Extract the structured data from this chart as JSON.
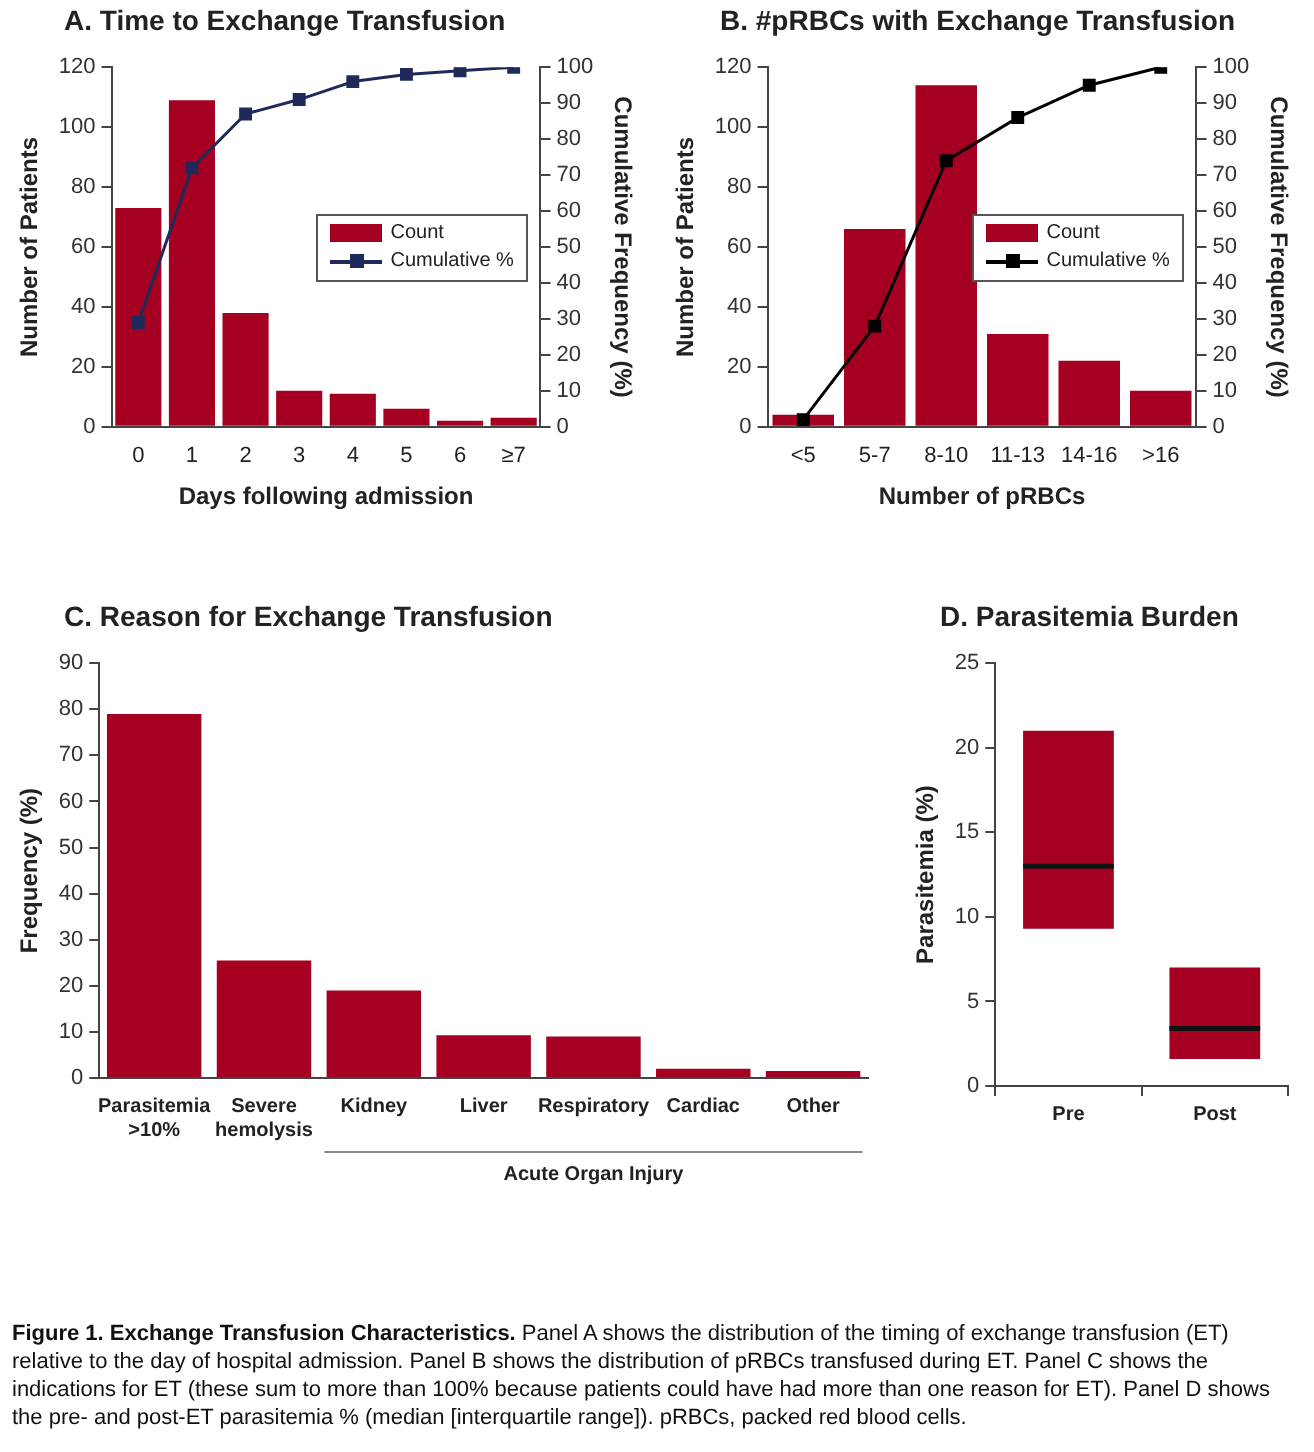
{
  "chart_data": [
    {
      "type": "bar",
      "title": "A. Time to Exchange Transfusion",
      "xlabel": "Days following admission",
      "ylabel": "Number of Patients",
      "y2label": "Cumulative Frequency (%)",
      "categories": [
        "0",
        "1",
        "2",
        "3",
        "4",
        "5",
        "6",
        "≥7"
      ],
      "series": [
        {
          "name": "Count",
          "color": "#a50021",
          "values": [
            73,
            109,
            38,
            12,
            11,
            6,
            2,
            3
          ]
        },
        {
          "name": "Cumulative %",
          "type": "line",
          "axis": "y2",
          "color": "#1f2a5a",
          "values": [
            29,
            72,
            87,
            91,
            96,
            98,
            99,
            100
          ]
        }
      ],
      "ylim": [
        0,
        120
      ],
      "yticks": [
        0,
        20,
        40,
        60,
        80,
        100,
        120
      ],
      "y2lim": [
        0,
        100
      ],
      "y2ticks": [
        0,
        10,
        20,
        30,
        40,
        50,
        60,
        70,
        80,
        90,
        100
      ],
      "grid": false,
      "legend": "right",
      "marker": "square",
      "line_style": "solid"
    },
    {
      "type": "bar",
      "title": "B. #pRBCs with Exchange Transfusion",
      "xlabel": "Number of pRBCs",
      "ylabel": "Number of Patients",
      "y2label": "Cumulative Frequency (%)",
      "categories": [
        "<5",
        "5-7",
        "8-10",
        "11-13",
        "14-16",
        ">16"
      ],
      "series": [
        {
          "name": "Count",
          "color": "#a50021",
          "values": [
            4,
            66,
            114,
            31,
            22,
            12
          ]
        },
        {
          "name": "Cumulative %",
          "type": "line",
          "axis": "y2",
          "color": "#000000",
          "values": [
            2,
            28,
            74,
            86,
            95,
            100
          ]
        }
      ],
      "ylim": [
        0,
        120
      ],
      "yticks": [
        0,
        20,
        40,
        60,
        80,
        100,
        120
      ],
      "y2lim": [
        0,
        100
      ],
      "y2ticks": [
        0,
        10,
        20,
        30,
        40,
        50,
        60,
        70,
        80,
        90,
        100
      ],
      "grid": false,
      "legend": "right",
      "marker": "square",
      "line_style": "solid"
    },
    {
      "type": "bar",
      "title": "C. Reason for Exchange Transfusion",
      "ylabel": "Frequency (%)",
      "categories": [
        "Parasitemia >10%",
        "Severe hemolysis",
        "Kidney",
        "Liver",
        "Respiratory",
        "Cardiac",
        "Other"
      ],
      "values": [
        79,
        25.5,
        19,
        9.3,
        9,
        2,
        1.5
      ],
      "color": "#a50021",
      "ylim": [
        0,
        90
      ],
      "yticks": [
        0,
        10,
        20,
        30,
        40,
        50,
        60,
        70,
        80,
        90
      ],
      "grid": false,
      "annotations": [
        "Acute Organ Injury"
      ]
    },
    {
      "type": "box",
      "title": "D. Parasitemia Burden",
      "ylabel": "Parasitemia (%)",
      "categories": [
        "Pre",
        "Post"
      ],
      "color": "#a50021",
      "boxes": [
        {
          "low": 9.3,
          "q1": 9.3,
          "median": 13,
          "q3": 21,
          "high": 21
        },
        {
          "low": 1.6,
          "q1": 1.6,
          "median": 3.4,
          "q3": 7,
          "high": 7
        }
      ],
      "ylim": [
        0,
        25
      ],
      "yticks": [
        0,
        5,
        10,
        15,
        20,
        25
      ],
      "grid": false,
      "annotations": [
        "Figure 1. Exchange Transfusion Characteristics.",
        "Panel A shows the distribution of the timing of exchange transfusion (ET) relative to the day of hospital admission. Panel B shows the distribution of pRBCs transfused during ET. Panel C shows the indications for ET (these sum to more than 100% because patients could have had more than one reason for ET). Panel D shows the pre- and post-ET parasitemia % (median [interquartile range]). pRBCs, packed red blood cells."
      ]
    }
  ]
}
